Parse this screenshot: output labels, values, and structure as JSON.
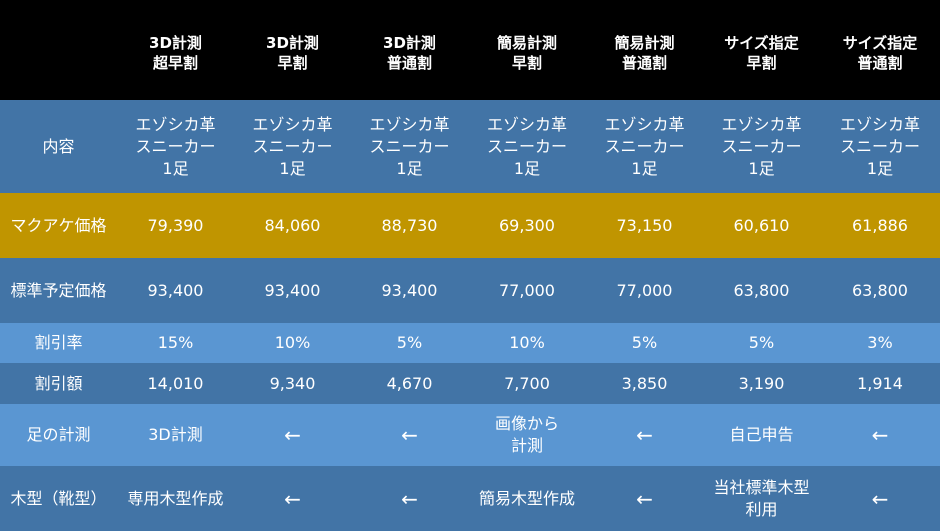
{
  "headers": [
    {
      "line1": "",
      "line2": ""
    },
    {
      "line1": "3D計測",
      "line2": "超早割"
    },
    {
      "line1": "3D計測",
      "line2": "早割"
    },
    {
      "line1": "3D計測",
      "line2": "普通割"
    },
    {
      "line1": "簡易計測",
      "line2": "早割"
    },
    {
      "line1": "簡易計測",
      "line2": "普通割"
    },
    {
      "line1": "サイズ指定",
      "line2": "早割"
    },
    {
      "line1": "サイズ指定",
      "line2": "普通割"
    }
  ],
  "rows": {
    "content": {
      "label": "内容",
      "cells": [
        [
          "エゾシカ革",
          "スニーカー",
          "1足"
        ],
        [
          "エゾシカ革",
          "スニーカー",
          "1足"
        ],
        [
          "エゾシカ革",
          "スニーカー",
          "1足"
        ],
        [
          "エゾシカ革",
          "スニーカー",
          "1足"
        ],
        [
          "エゾシカ革",
          "スニーカー",
          "1足"
        ],
        [
          "エゾシカ革",
          "スニーカー",
          "1足"
        ],
        [
          "エゾシカ革",
          "スニーカー",
          "1足"
        ]
      ]
    },
    "price": {
      "label": "マクアケ価格",
      "cells": [
        "79,390",
        "84,060",
        "88,730",
        "69,300",
        "73,150",
        "60,610",
        "61,886"
      ]
    },
    "std": {
      "label": "標準予定価格",
      "cells": [
        "93,400",
        "93,400",
        "93,400",
        "77,000",
        "77,000",
        "63,800",
        "63,800"
      ]
    },
    "rate": {
      "label": "割引率",
      "cells": [
        "15%",
        "10%",
        "5%",
        "10%",
        "5%",
        "5%",
        "3%"
      ]
    },
    "amount": {
      "label": "割引額",
      "cells": [
        "14,010",
        "9,340",
        "4,670",
        "7,700",
        "3,850",
        "3,190",
        "1,914"
      ]
    },
    "measure": {
      "label": "足の計測",
      "cells": [
        [
          "3D計測"
        ],
        [
          "←"
        ],
        [
          "←"
        ],
        [
          "画像から",
          "計測"
        ],
        [
          "←"
        ],
        [
          "自己申告"
        ],
        [
          "←"
        ]
      ]
    },
    "last": {
      "label": "木型（靴型）",
      "cells": [
        [
          "専用木型作成"
        ],
        [
          "←"
        ],
        [
          "←"
        ],
        [
          "簡易木型作成"
        ],
        [
          "←"
        ],
        [
          "当社標準木型",
          "利用"
        ],
        [
          "←"
        ]
      ]
    }
  },
  "colors": {
    "header_bg": "#000000",
    "row_dark": "#4274a6",
    "row_light": "#5a96d2",
    "highlight": "#c09500"
  }
}
